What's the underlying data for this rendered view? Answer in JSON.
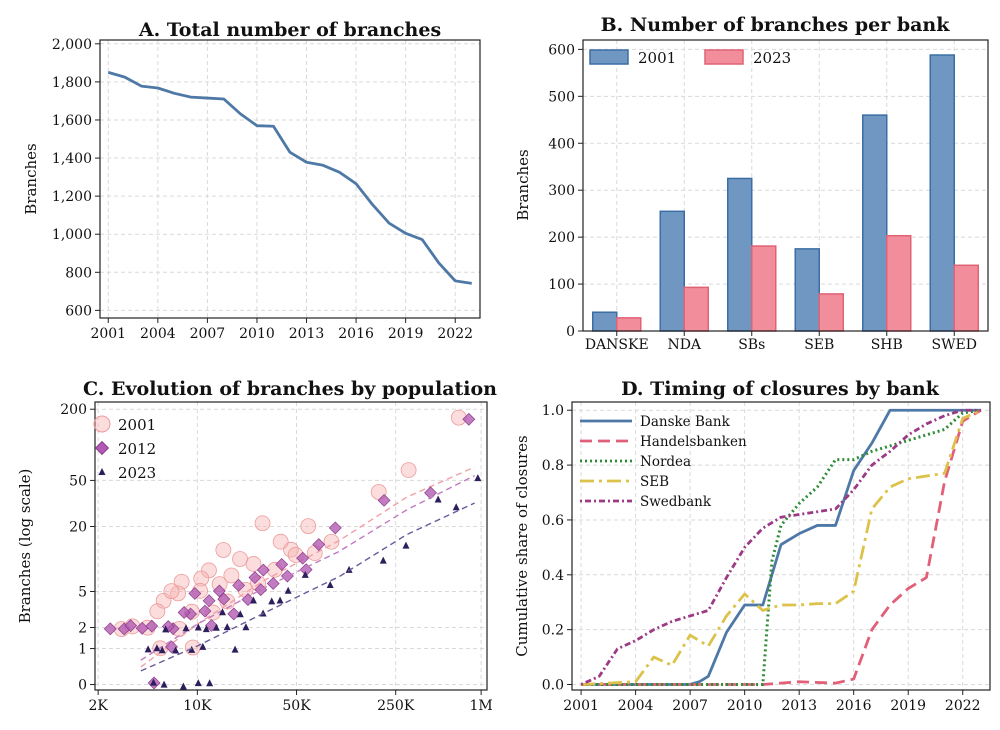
{
  "chart_data": [
    {
      "type": "line",
      "title": "A. Total number of branches",
      "xlabel": "",
      "ylabel": "Branches",
      "xlim": [
        2000.5,
        2023.5
      ],
      "ylim": [
        560,
        2020
      ],
      "x_ticks": [
        2001,
        2004,
        2007,
        2010,
        2013,
        2016,
        2019,
        2022
      ],
      "y_ticks": [
        600,
        800,
        1000,
        1200,
        1400,
        1600,
        1800,
        2000
      ],
      "y_tick_labels": [
        "600",
        "800",
        "1,000",
        "1,200",
        "1,400",
        "1,600",
        "1,800",
        "2,000"
      ],
      "grid": true,
      "color": "#4e79a7",
      "x": [
        2001,
        2002,
        2003,
        2004,
        2005,
        2006,
        2007,
        2008,
        2009,
        2010,
        2011,
        2012,
        2013,
        2014,
        2015,
        2016,
        2017,
        2018,
        2019,
        2020,
        2021,
        2022,
        2023
      ],
      "y": [
        1850,
        1825,
        1778,
        1768,
        1740,
        1720,
        1715,
        1710,
        1632,
        1570,
        1567,
        1430,
        1378,
        1362,
        1325,
        1265,
        1155,
        1058,
        1005,
        972,
        850,
        755,
        742
      ]
    },
    {
      "type": "bar",
      "title": "B. Number of branches per bank",
      "xlabel": "",
      "ylabel": "Branches",
      "categories": [
        "DANSKE",
        "NDA",
        "SBs",
        "SEB",
        "SHB",
        "SWED"
      ],
      "ylim": [
        0,
        620
      ],
      "y_ticks": [
        0,
        100,
        200,
        300,
        400,
        500,
        600
      ],
      "grid": true,
      "legend": "top-left",
      "series": [
        {
          "name": "2001",
          "color": "#6f97c2",
          "edge": "#3b6ea5",
          "values": [
            40,
            255,
            325,
            175,
            460,
            588
          ]
        },
        {
          "name": "2023",
          "color": "#f28e9b",
          "edge": "#e06275",
          "values": [
            28,
            93,
            181,
            79,
            203,
            140
          ]
        }
      ]
    },
    {
      "type": "scatter",
      "title": "C. Evolution of branches by population",
      "xlabel": "",
      "ylabel": "Branches (log scale)",
      "x_scale": "log",
      "y_scale": "log1p",
      "xlim": [
        1900,
        1100000
      ],
      "ylim": [
        -0.1,
        230
      ],
      "x_ticks": [
        2000,
        10000,
        50000,
        250000,
        1000000
      ],
      "x_tick_labels": [
        "2K",
        "10K",
        "50K",
        "250K",
        "1M"
      ],
      "y_ticks": [
        0,
        1,
        2,
        5,
        20,
        50,
        200
      ],
      "y_tick_labels": [
        "0",
        "1",
        "2",
        "5",
        "20",
        "50",
        "200"
      ],
      "grid": true,
      "legend": "top-left",
      "series": [
        {
          "name": "2001",
          "marker": "circle",
          "color": "#f7b3b3",
          "trend": [
            [
              4000,
              0.4
            ],
            [
              10000,
              2.2
            ],
            [
              30000,
              6.5
            ],
            [
              100000,
              15
            ],
            [
              300000,
              36
            ],
            [
              900000,
              65
            ]
          ],
          "points": [
            [
              190000,
              40
            ],
            [
              320000,
              60
            ],
            [
              700000,
              170
            ],
            [
              30000,
              22
            ],
            [
              60000,
              20
            ],
            [
              90000,
              15
            ],
            [
              45000,
              12
            ],
            [
              20000,
              10
            ],
            [
              15000,
              12
            ],
            [
              12000,
              8
            ],
            [
              8000,
              6
            ],
            [
              7000,
              5
            ],
            [
              6000,
              4
            ],
            [
              5000,
              3
            ],
            [
              4500,
              2
            ],
            [
              9000,
              3
            ],
            [
              11000,
              7
            ],
            [
              25000,
              9
            ],
            [
              35000,
              8
            ],
            [
              40000,
              15
            ],
            [
              50000,
              11
            ],
            [
              70000,
              12
            ],
            [
              3000,
              2
            ],
            [
              3500,
              2
            ],
            [
              6500,
              5
            ],
            [
              14000,
              6
            ],
            [
              18000,
              7
            ],
            [
              22000,
              5
            ],
            [
              28000,
              6
            ],
            [
              16000,
              4
            ],
            [
              10000,
              5
            ],
            [
              13000,
              3
            ],
            [
              7500,
              2
            ],
            [
              5500,
              1
            ],
            [
              9500,
              1
            ]
          ]
        },
        {
          "name": "2012",
          "marker": "diamond",
          "color": "#b35bb3",
          "trend": [
            [
              4000,
              0.6
            ],
            [
              10000,
              2.2
            ],
            [
              30000,
              5.5
            ],
            [
              100000,
              12
            ],
            [
              300000,
              28
            ],
            [
              900000,
              55
            ]
          ],
          "points": [
            [
              800000,
              160
            ],
            [
              450000,
              40
            ],
            [
              200000,
              35
            ],
            [
              90000,
              20
            ],
            [
              70000,
              14
            ],
            [
              55000,
              10
            ],
            [
              40000,
              9
            ],
            [
              30000,
              8
            ],
            [
              25000,
              7
            ],
            [
              20000,
              6
            ],
            [
              15000,
              5
            ],
            [
              12000,
              4
            ],
            [
              10000,
              5
            ],
            [
              9000,
              3
            ],
            [
              8000,
              3
            ],
            [
              7000,
              2
            ],
            [
              6000,
              2
            ],
            [
              5000,
              2
            ],
            [
              4000,
              2
            ],
            [
              3000,
              2
            ],
            [
              2500,
              2
            ],
            [
              3500,
              2
            ],
            [
              16000,
              4
            ],
            [
              18000,
              3
            ],
            [
              22000,
              4
            ],
            [
              28000,
              5
            ],
            [
              35000,
              6
            ],
            [
              45000,
              7
            ],
            [
              60000,
              8
            ],
            [
              11000,
              3
            ],
            [
              13000,
              2
            ],
            [
              6500,
              1
            ],
            [
              5000,
              0
            ]
          ]
        },
        {
          "name": "2023",
          "marker": "triangle",
          "color": "#2d1e5c",
          "trend": [
            [
              4000,
              0.3
            ],
            [
              10000,
              1.1
            ],
            [
              30000,
              3
            ],
            [
              100000,
              7
            ],
            [
              300000,
              17
            ],
            [
              900000,
              32
            ]
          ],
          "points": [
            [
              950000,
              52
            ],
            [
              700000,
              30
            ],
            [
              500000,
              35
            ],
            [
              300000,
              14
            ],
            [
              200000,
              10
            ],
            [
              120000,
              8
            ],
            [
              90000,
              6
            ],
            [
              60000,
              7
            ],
            [
              45000,
              5
            ],
            [
              35000,
              4
            ],
            [
              25000,
              4
            ],
            [
              20000,
              3
            ],
            [
              15000,
              3
            ],
            [
              12000,
              2
            ],
            [
              10000,
              2
            ],
            [
              8000,
              2
            ],
            [
              6000,
              2
            ],
            [
              5000,
              1
            ],
            [
              4500,
              1
            ],
            [
              5500,
              1
            ],
            [
              7000,
              1
            ],
            [
              9000,
              1
            ],
            [
              11000,
              1
            ],
            [
              13000,
              2
            ],
            [
              16000,
              2
            ],
            [
              18000,
              1
            ],
            [
              22000,
              2
            ],
            [
              28000,
              3
            ],
            [
              40000,
              4
            ],
            [
              8000,
              0
            ],
            [
              10000,
              0
            ],
            [
              12000,
              0
            ],
            [
              6000,
              0
            ],
            [
              5000,
              0
            ]
          ]
        }
      ]
    },
    {
      "type": "line",
      "title": "D. Timing of closures by bank",
      "xlabel": "",
      "ylabel": "Cumulative share of closures",
      "xlim": [
        2000.5,
        2023.5
      ],
      "ylim": [
        -0.02,
        1.03
      ],
      "x_ticks": [
        2001,
        2004,
        2007,
        2010,
        2013,
        2016,
        2019,
        2022
      ],
      "y_ticks": [
        0.0,
        0.2,
        0.4,
        0.6,
        0.8,
        1.0
      ],
      "y_tick_labels": [
        "0.0",
        "0.2",
        "0.4",
        "0.6",
        "0.8",
        "1.0"
      ],
      "grid": true,
      "legend": "top-left",
      "series": [
        {
          "name": "Danske Bank",
          "color": "#4e79a7",
          "dash": "",
          "x": [
            2001,
            2007,
            2007.5,
            2008,
            2009,
            2009.5,
            2010,
            2011,
            2012,
            2013,
            2014,
            2015,
            2016,
            2017,
            2018,
            2023
          ],
          "y": [
            0,
            0,
            0.01,
            0.03,
            0.19,
            0.24,
            0.29,
            0.29,
            0.51,
            0.55,
            0.58,
            0.58,
            0.78,
            0.88,
            1.0,
            1.0
          ]
        },
        {
          "name": "Handelsbanken",
          "color": "#e15f78",
          "dash": "12 6",
          "x": [
            2001,
            2011,
            2013,
            2015,
            2016,
            2017,
            2018,
            2019,
            2020,
            2021,
            2022,
            2023
          ],
          "y": [
            0,
            0,
            0.01,
            0.005,
            0.02,
            0.2,
            0.29,
            0.35,
            0.39,
            0.74,
            0.96,
            1.0
          ]
        },
        {
          "name": "Nordea",
          "color": "#2e8b37",
          "dash": "2 3",
          "x": [
            2001,
            2011,
            2011.5,
            2012,
            2013,
            2014,
            2015,
            2016,
            2017,
            2018,
            2019,
            2020,
            2021,
            2022,
            2023
          ],
          "y": [
            0,
            0,
            0.45,
            0.58,
            0.66,
            0.72,
            0.82,
            0.82,
            0.85,
            0.87,
            0.89,
            0.91,
            0.93,
            0.99,
            1.0
          ]
        },
        {
          "name": "SEB",
          "color": "#dcc24a",
          "dash": "14 5 3 5",
          "x": [
            2001,
            2004,
            2005,
            2006,
            2007,
            2008,
            2009,
            2010,
            2011,
            2012,
            2013,
            2014,
            2015,
            2016,
            2017,
            2018,
            2019,
            2020,
            2021,
            2022,
            2023
          ],
          "y": [
            0,
            0.01,
            0.1,
            0.07,
            0.18,
            0.14,
            0.25,
            0.33,
            0.27,
            0.29,
            0.29,
            0.295,
            0.295,
            0.34,
            0.64,
            0.72,
            0.75,
            0.76,
            0.77,
            0.97,
            1.0
          ]
        },
        {
          "name": "Swedbank",
          "color": "#9c3a86",
          "dash": "2 3 6 3",
          "x": [
            2001,
            2002,
            2003,
            2004,
            2005,
            2006,
            2007,
            2008,
            2009,
            2010,
            2011,
            2012,
            2013,
            2014,
            2015,
            2016,
            2017,
            2018,
            2019,
            2020,
            2021,
            2022,
            2023
          ],
          "y": [
            0,
            0.03,
            0.13,
            0.16,
            0.2,
            0.23,
            0.25,
            0.27,
            0.39,
            0.5,
            0.57,
            0.61,
            0.62,
            0.63,
            0.64,
            0.71,
            0.8,
            0.85,
            0.91,
            0.95,
            0.98,
            1.0,
            1.0
          ]
        }
      ]
    }
  ]
}
